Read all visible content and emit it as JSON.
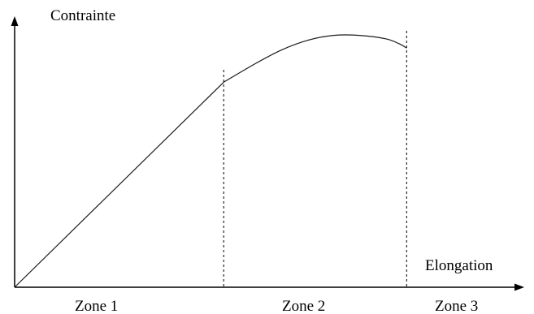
{
  "chart_data": {
    "type": "line",
    "ylabel": "Contrainte",
    "xlabel": "Elongation",
    "zones": [
      "Zone 1",
      "Zone 2",
      "Zone 3"
    ],
    "boundaries": [
      0.4,
      0.75
    ],
    "series": [
      {
        "x": [
          0,
          0.4,
          0.46,
          0.51,
          0.56,
          0.61,
          0.66,
          0.71,
          0.735,
          0.75
        ],
        "y": [
          0,
          0.78,
          0.85,
          0.902,
          0.939,
          0.958,
          0.958,
          0.945,
          0.927,
          0.91
        ]
      }
    ],
    "xlim": [
      0,
      1
    ],
    "ylim": [
      0,
      1
    ],
    "colors": {
      "axis": "#000000",
      "curve": "#1a1a1a",
      "text": "#000000"
    }
  }
}
